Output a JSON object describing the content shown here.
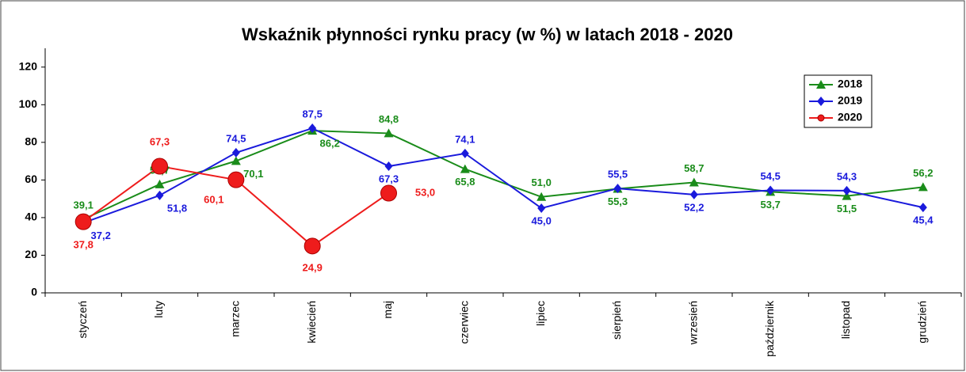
{
  "chart_data": {
    "type": "line",
    "title": "Wskaźnik płynności rynku pracy  (w %) w latach  2018  -  2020",
    "categories": [
      "styczeń",
      "luty",
      "marzec",
      "kwiecień",
      "maj",
      "czerwiec",
      "lipiec",
      "sierpień",
      "wrzesień",
      "październik",
      "listopad",
      "grudzień"
    ],
    "series": [
      {
        "name": "2018",
        "color": "#1a8c1a",
        "marker": "triangle",
        "values": [
          39.1,
          57.7,
          70.1,
          86.2,
          84.8,
          65.8,
          51.0,
          55.3,
          58.7,
          53.7,
          51.5,
          56.2
        ],
        "value_labels": [
          "39,1",
          "57,7",
          "70,1",
          "86,2",
          "84,8",
          "65,8",
          "51,0",
          "55,3",
          "58,7",
          "53,7",
          "51,5",
          "56,2"
        ]
      },
      {
        "name": "2019",
        "color": "#1a1adc",
        "marker": "diamond",
        "values": [
          37.2,
          51.8,
          74.5,
          87.5,
          67.3,
          74.1,
          45.0,
          55.5,
          52.2,
          54.5,
          54.3,
          45.4
        ],
        "value_labels": [
          "37,2",
          "51,8",
          "74,5",
          "87,5",
          "67,3",
          "74,1",
          "45,0",
          "55,5",
          "52,2",
          "54,5",
          "54,3",
          "45,4"
        ]
      },
      {
        "name": "2020",
        "color": "#ee1c1c",
        "marker": "circle",
        "values": [
          37.8,
          67.3,
          60.1,
          24.9,
          53.0,
          null,
          null,
          null,
          null,
          null,
          null,
          null
        ],
        "value_labels": [
          "37,8",
          "67,3",
          "60,1",
          "24,9",
          "53,0",
          null,
          null,
          null,
          null,
          null,
          null,
          null
        ]
      }
    ],
    "ylim": [
      0,
      130
    ],
    "yticks": [
      0,
      20,
      40,
      60,
      80,
      100,
      120
    ],
    "legend": "top-right"
  }
}
